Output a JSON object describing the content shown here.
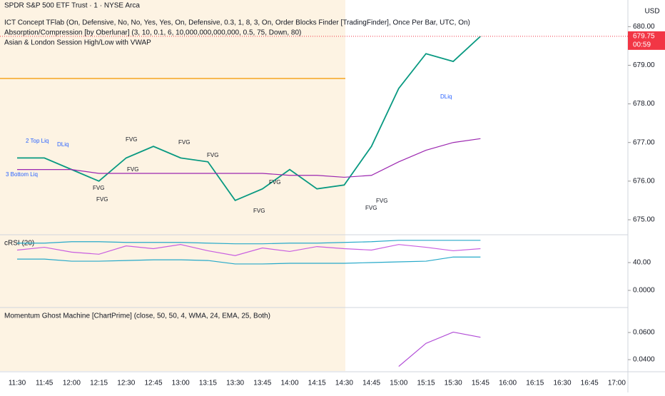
{
  "chart_data": [
    {
      "type": "line",
      "title": "SPDR S&P 500 ETF Trust · 1 · NYSE Arca",
      "indicators": [
        "ICT Concept TFlab (On, Defensive, No, No, Yes, Yes, On, Defensive, 0.3, 1, 8, 3, On, Order Blocks Finder [TradingFinder], Once Per Bar, UTC, On)",
        "Absorption/Compression [by Oberlunar] (3, 10, 0.1, 6, 10,000,000,000,000, 0.5, 75, Down, 80)",
        "Asian & London Session High/Low with VWAP"
      ],
      "currency": "USD",
      "categories": [
        "11:30",
        "11:45",
        "12:00",
        "12:15",
        "12:30",
        "12:45",
        "13:00",
        "13:15",
        "13:30",
        "13:45",
        "14:00",
        "14:15",
        "14:30",
        "14:45",
        "15:00",
        "15:15",
        "15:30",
        "15:45",
        "16:00",
        "16:15",
        "16:30",
        "16:45",
        "17:00"
      ],
      "series": [
        {
          "color": "#089981",
          "values": [
            676.6,
            676.6,
            676.3,
            676.0,
            676.6,
            676.9,
            676.6,
            676.5,
            675.5,
            675.8,
            676.3,
            675.8,
            675.9,
            676.9,
            678.4,
            679.3,
            679.1,
            679.75,
            null,
            null,
            null,
            null,
            null
          ]
        },
        {
          "color": "#9c27b0",
          "values": [
            676.3,
            676.3,
            676.3,
            676.2,
            676.2,
            676.2,
            676.2,
            676.2,
            676.2,
            676.2,
            676.15,
            676.15,
            676.1,
            676.15,
            676.5,
            676.8,
            677.0,
            677.1,
            null,
            null,
            null,
            null,
            null
          ]
        }
      ],
      "ylim": [
        674.63,
        680.69
      ],
      "yticks": [
        {
          "value": 675,
          "label": "675.00"
        },
        {
          "value": 676,
          "label": "676.00"
        },
        {
          "value": 677,
          "label": "677.00"
        },
        {
          "value": 678,
          "label": "678.00"
        },
        {
          "value": 679,
          "label": "679.00"
        },
        {
          "value": 680,
          "label": "680.00"
        }
      ],
      "last_price": 679.75,
      "last_price_label": "679.75",
      "countdown": "00:59",
      "annotations": [
        "2 Top Liq",
        "DLiq",
        "3 Bottom Liq",
        "FVG",
        "FVG",
        "FVG",
        "FVG",
        "FVG",
        "FVG",
        "FVG",
        "FVG",
        "DLiq",
        "FVG",
        "FVG"
      ]
    },
    {
      "type": "line",
      "title": "cRSI (20)",
      "series": [
        {
          "color": "#c95ee0",
          "values": [
            58,
            62,
            55,
            52,
            64,
            60,
            66,
            57,
            50,
            61,
            56,
            63,
            60,
            58,
            66,
            62,
            57,
            60,
            null,
            null,
            null,
            null,
            null
          ]
        },
        {
          "color": "#26a9c9",
          "values": [
            68,
            68,
            70,
            70,
            69,
            69,
            69,
            68,
            67,
            67,
            68,
            68,
            69,
            70,
            72,
            72,
            72,
            72,
            null,
            null,
            null,
            null,
            null
          ]
        },
        {
          "color": "#26a9c9",
          "values": [
            45,
            45,
            42,
            42,
            43,
            44,
            44,
            43,
            38,
            38,
            39,
            39,
            39,
            40,
            41,
            42,
            48,
            48,
            null,
            null,
            null,
            null,
            null
          ]
        }
      ],
      "ylim": [
        -23.6,
        79
      ],
      "yticks": [
        {
          "value": 0,
          "label": "0.0000"
        },
        {
          "value": 40,
          "label": "40.00"
        }
      ]
    },
    {
      "type": "line",
      "title": "Momentum Ghost Machine [ChartPrime] (close, 50, 50, 4, WMA, 24, EMA, 25, Both)",
      "series": [
        {
          "color": "#b04ad6",
          "values": [
            null,
            null,
            null,
            null,
            null,
            null,
            null,
            null,
            null,
            null,
            null,
            null,
            null,
            null,
            0.035,
            0.052,
            0.0603,
            0.0565,
            null,
            null,
            null,
            null,
            null
          ]
        }
      ],
      "ylim": [
        0.0316,
        0.0779
      ],
      "yticks": [
        {
          "value": 0.04,
          "label": "0.0400"
        },
        {
          "value": 0.06,
          "label": "0.0600"
        }
      ]
    }
  ]
}
